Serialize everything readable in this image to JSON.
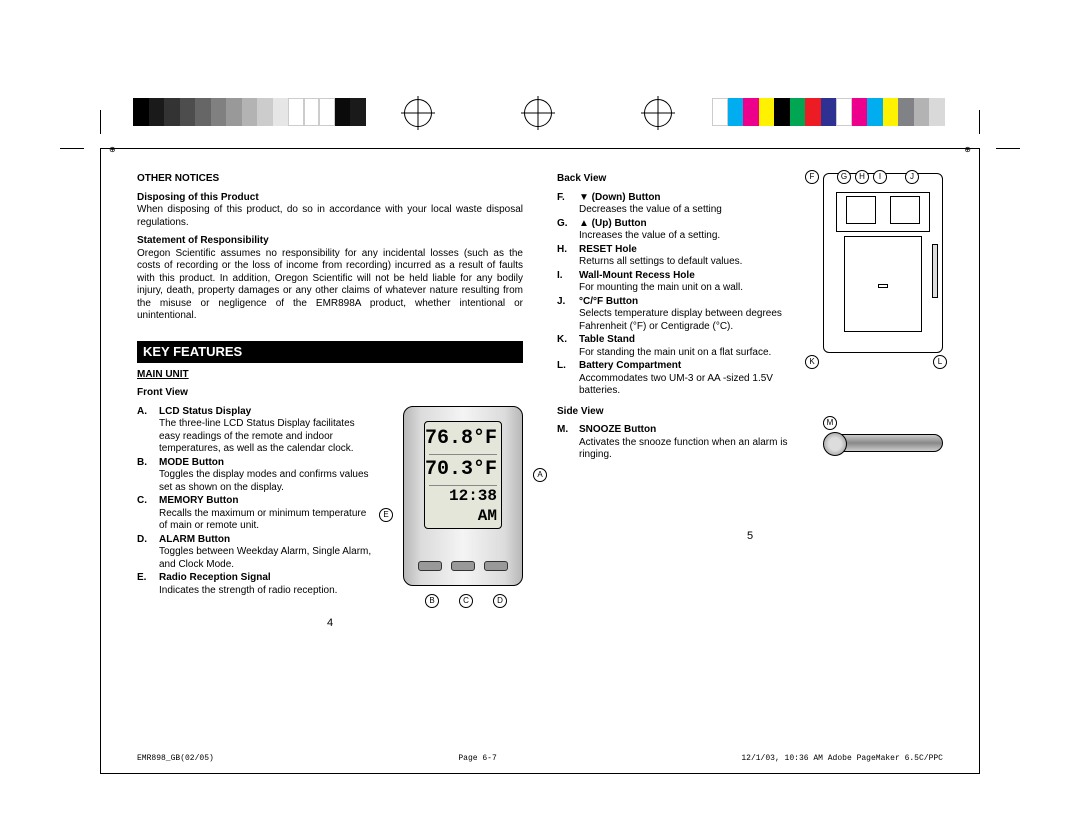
{
  "swatches_left": [
    "#000000",
    "#1a1a1a",
    "#333333",
    "#4d4d4d",
    "#666666",
    "#808080",
    "#999999",
    "#b3b3b3",
    "#cccccc",
    "#e6e6e6",
    "#ffffff",
    "#ffffff",
    "#ffffff",
    "#0a0a0a",
    "#1a1a1a"
  ],
  "swatches_right": [
    "#ffffff",
    "#00aeef",
    "#ec008c",
    "#fff200",
    "#000000",
    "#00a651",
    "#ed1c24",
    "#2e3192",
    "#ffffff",
    "#ec008c",
    "#00aeef",
    "#fff200",
    "#808285",
    "#b3b3b3",
    "#d9d9d9"
  ],
  "other_notices": {
    "heading": "OTHER NOTICES",
    "sub1_title": "Disposing of this Product",
    "sub1_body": "When disposing of this product, do so in accordance with your local waste disposal regulations.",
    "sub2_title": "Statement of Responsibility",
    "sub2_body": "Oregon Scientific assumes no responsibility for any incidental losses (such as the costs of recording or the loss of income from recording) incurred as a result of faults with this product. In addition, Oregon Scientific will not be held liable for any bodily injury, death, property damages or any other claims of whatever nature resulting from the misuse or negligence of the EMR898A product, whether intentional or unintentional."
  },
  "key_features_label": "KEY FEATURES",
  "main_unit_label": "MAIN UNIT",
  "front_view_label": "Front View",
  "back_view_label": "Back View",
  "side_view_label": "Side View",
  "front_items": [
    {
      "lbl": "A.",
      "title": "LCD Status Display",
      "body": "The three-line LCD Status Display facilitates easy readings of the remote and indoor temperatures, as well as the calendar clock."
    },
    {
      "lbl": "B.",
      "title": "MODE Button",
      "body": "Toggles the display modes and confirms values set as shown on the display."
    },
    {
      "lbl": "C.",
      "title": "MEMORY Button",
      "body": "Recalls the maximum or minimum temperature of main or remote unit."
    },
    {
      "lbl": "D.",
      "title": "ALARM Button",
      "body": "Toggles between Weekday Alarm, Single Alarm, and Clock Mode."
    },
    {
      "lbl": "E.",
      "title": "Radio Reception Signal",
      "body": "Indicates the strength of radio reception."
    }
  ],
  "back_items": [
    {
      "lbl": "F.",
      "title": "▼ (Down) Button",
      "body": "Decreases the value of a setting"
    },
    {
      "lbl": "G.",
      "title": "▲ (Up) Button",
      "body": "Increases the value of a setting."
    },
    {
      "lbl": "H.",
      "title": "RESET Hole",
      "body": "Returns all settings to default values."
    },
    {
      "lbl": "I.",
      "title": "Wall-Mount Recess Hole",
      "body": "For mounting the main unit on a wall."
    },
    {
      "lbl": "J.",
      "title": "°C/°F Button",
      "body": "Selects temperature display between degrees Fahrenheit (°F) or Centigrade (°C)."
    },
    {
      "lbl": "K.",
      "title": "Table Stand",
      "body": "For standing the main unit on a flat surface."
    },
    {
      "lbl": "L.",
      "title": "Battery Compartment",
      "body": "Accommodates two UM-3 or  AA -sized 1.5V batteries."
    }
  ],
  "side_items": [
    {
      "lbl": "M.",
      "title": "SNOOZE Button",
      "body": "Activates the snooze function when an alarm is ringing."
    }
  ],
  "lcd": {
    "l1": "76.8°F",
    "l2": "70.3°F",
    "l3": "12:38 AM"
  },
  "page_left": "4",
  "page_right": "5",
  "footer_left": "EMR898_GB(02/05)",
  "footer_mid": "Page 6-7",
  "footer_right": "12/1/03, 10:36 AM  Adobe PageMaker 6.5C/PPC"
}
